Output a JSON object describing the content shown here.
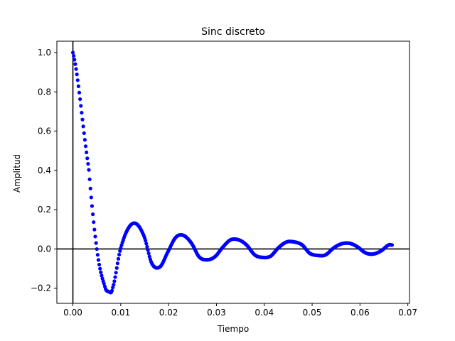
{
  "chart_data": {
    "type": "scatter",
    "title": "Sinc discreto",
    "xlabel": "Tiempo",
    "ylabel": "Amplitud",
    "xlim": [
      -0.00335,
      0.07035
    ],
    "ylim": [
      -0.277,
      1.058
    ],
    "xticks": [
      0.0,
      0.01,
      0.02,
      0.03,
      0.04,
      0.05,
      0.06,
      0.07
    ],
    "xtick_labels": [
      "0.00",
      "0.01",
      "0.02",
      "0.03",
      "0.04",
      "0.05",
      "0.06",
      "0.07"
    ],
    "yticks": [
      -0.2,
      0.0,
      0.2,
      0.4,
      0.6,
      0.8,
      1.0
    ],
    "ytick_labels": [
      "−0.2",
      "0.0",
      "0.2",
      "0.4",
      "0.6",
      "0.8",
      "1.0"
    ],
    "reference_lines": {
      "x": 0,
      "y": 0,
      "color": "#000000"
    },
    "marker_color": "#0000ff",
    "grid": false,
    "series": [
      {
        "x": [
          0.0,
          0.0033,
          0.005,
          0.0066,
          0.0075,
          0.0083,
          0.0099,
          0.0116,
          0.0132,
          0.0149,
          0.0165,
          0.0182,
          0.0198,
          0.0215,
          0.0231,
          0.0248,
          0.0264,
          0.0281,
          0.0297,
          0.0314,
          0.033,
          0.0347,
          0.0363,
          0.038,
          0.0396,
          0.0413,
          0.0429,
          0.0446,
          0.0462,
          0.0479,
          0.0495,
          0.0512,
          0.0528,
          0.0545,
          0.0561,
          0.0578,
          0.0594,
          0.0611,
          0.0627,
          0.0644,
          0.066,
          0.0667
        ],
        "y": [
          1.0,
          0.413,
          0.0,
          -0.183,
          -0.217,
          -0.199,
          -0.004,
          0.106,
          0.129,
          0.063,
          -0.074,
          -0.091,
          -0.017,
          0.059,
          0.069,
          0.029,
          -0.041,
          -0.055,
          -0.039,
          0.011,
          0.047,
          0.046,
          0.02,
          -0.03,
          -0.043,
          -0.037,
          0.005,
          0.035,
          0.036,
          0.021,
          -0.022,
          -0.033,
          -0.03,
          0.005,
          0.026,
          0.029,
          0.012,
          -0.019,
          -0.026,
          -0.01,
          0.02,
          0.02
        ]
      }
    ]
  }
}
